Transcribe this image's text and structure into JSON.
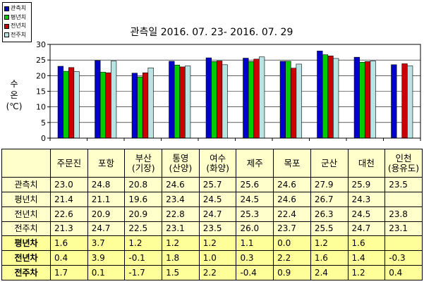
{
  "chart_data": {
    "type": "bar",
    "title": "관측일 2016. 07. 23- 2016. 07. 29",
    "ylabel_lines": [
      "수",
      "온",
      "(℃)"
    ],
    "ylim": [
      0,
      30
    ],
    "yticks": [
      "0",
      "5",
      "10",
      "15",
      "20",
      "25",
      "30"
    ],
    "grid": "horizontal",
    "legend_position": "top-left",
    "categories": [
      [
        "주문진"
      ],
      [
        "포항"
      ],
      [
        "부산",
        "(기장)"
      ],
      [
        "통영",
        "(산양)"
      ],
      [
        "여수",
        "(화양)"
      ],
      [
        "제주"
      ],
      [
        "목포"
      ],
      [
        "군산"
      ],
      [
        "대천"
      ],
      [
        "인천",
        "(용유도)"
      ]
    ],
    "series": [
      {
        "name": "관측치",
        "color": "#0000cc",
        "values": [
          23.0,
          24.8,
          20.8,
          24.6,
          25.7,
          25.6,
          24.6,
          27.9,
          25.9,
          23.5
        ]
      },
      {
        "name": "평년치",
        "color": "#00cc00",
        "values": [
          21.4,
          21.1,
          19.6,
          23.4,
          24.5,
          24.5,
          24.6,
          26.7,
          24.3,
          null
        ]
      },
      {
        "name": "전년치",
        "color": "#cc0000",
        "values": [
          22.6,
          20.9,
          20.9,
          22.8,
          24.7,
          25.3,
          22.4,
          26.3,
          24.5,
          23.8
        ]
      },
      {
        "name": "전주치",
        "color": "#b8e4e4",
        "values": [
          21.3,
          24.7,
          22.5,
          23.1,
          23.5,
          26.0,
          23.7,
          25.5,
          24.7,
          23.1
        ]
      }
    ],
    "table": {
      "rows": [
        {
          "label": "관측치",
          "values": [
            "23.0",
            "24.8",
            "20.8",
            "24.6",
            "25.7",
            "25.6",
            "24.6",
            "27.9",
            "25.9",
            "23.5"
          ]
        },
        {
          "label": "평년치",
          "values": [
            "21.4",
            "21.1",
            "19.6",
            "23.4",
            "24.5",
            "24.5",
            "24.6",
            "26.7",
            "24.3",
            ""
          ]
        },
        {
          "label": "전년치",
          "values": [
            "22.6",
            "20.9",
            "20.9",
            "22.8",
            "24.7",
            "25.3",
            "22.4",
            "26.3",
            "24.5",
            "23.8"
          ]
        },
        {
          "label": "전주치",
          "values": [
            "21.3",
            "24.7",
            "22.5",
            "23.1",
            "23.5",
            "26.0",
            "23.7",
            "25.5",
            "24.7",
            "23.1"
          ]
        },
        {
          "label": "평년차",
          "values": [
            "1.6",
            "3.7",
            "1.2",
            "1.2",
            "1.2",
            "1.1",
            "0.0",
            "1.2",
            "1.6",
            ""
          ],
          "diff": true
        },
        {
          "label": "전년차",
          "values": [
            "0.4",
            "3.9",
            "-0.1",
            "1.8",
            "1.0",
            "0.3",
            "2.2",
            "1.6",
            "1.4",
            "-0.3"
          ],
          "diff": true
        },
        {
          "label": "전주차",
          "values": [
            "1.7",
            "0.1",
            "-1.7",
            "1.5",
            "2.2",
            "-0.4",
            "0.9",
            "2.4",
            "1.2",
            "0.4"
          ],
          "diff": true
        }
      ]
    }
  }
}
